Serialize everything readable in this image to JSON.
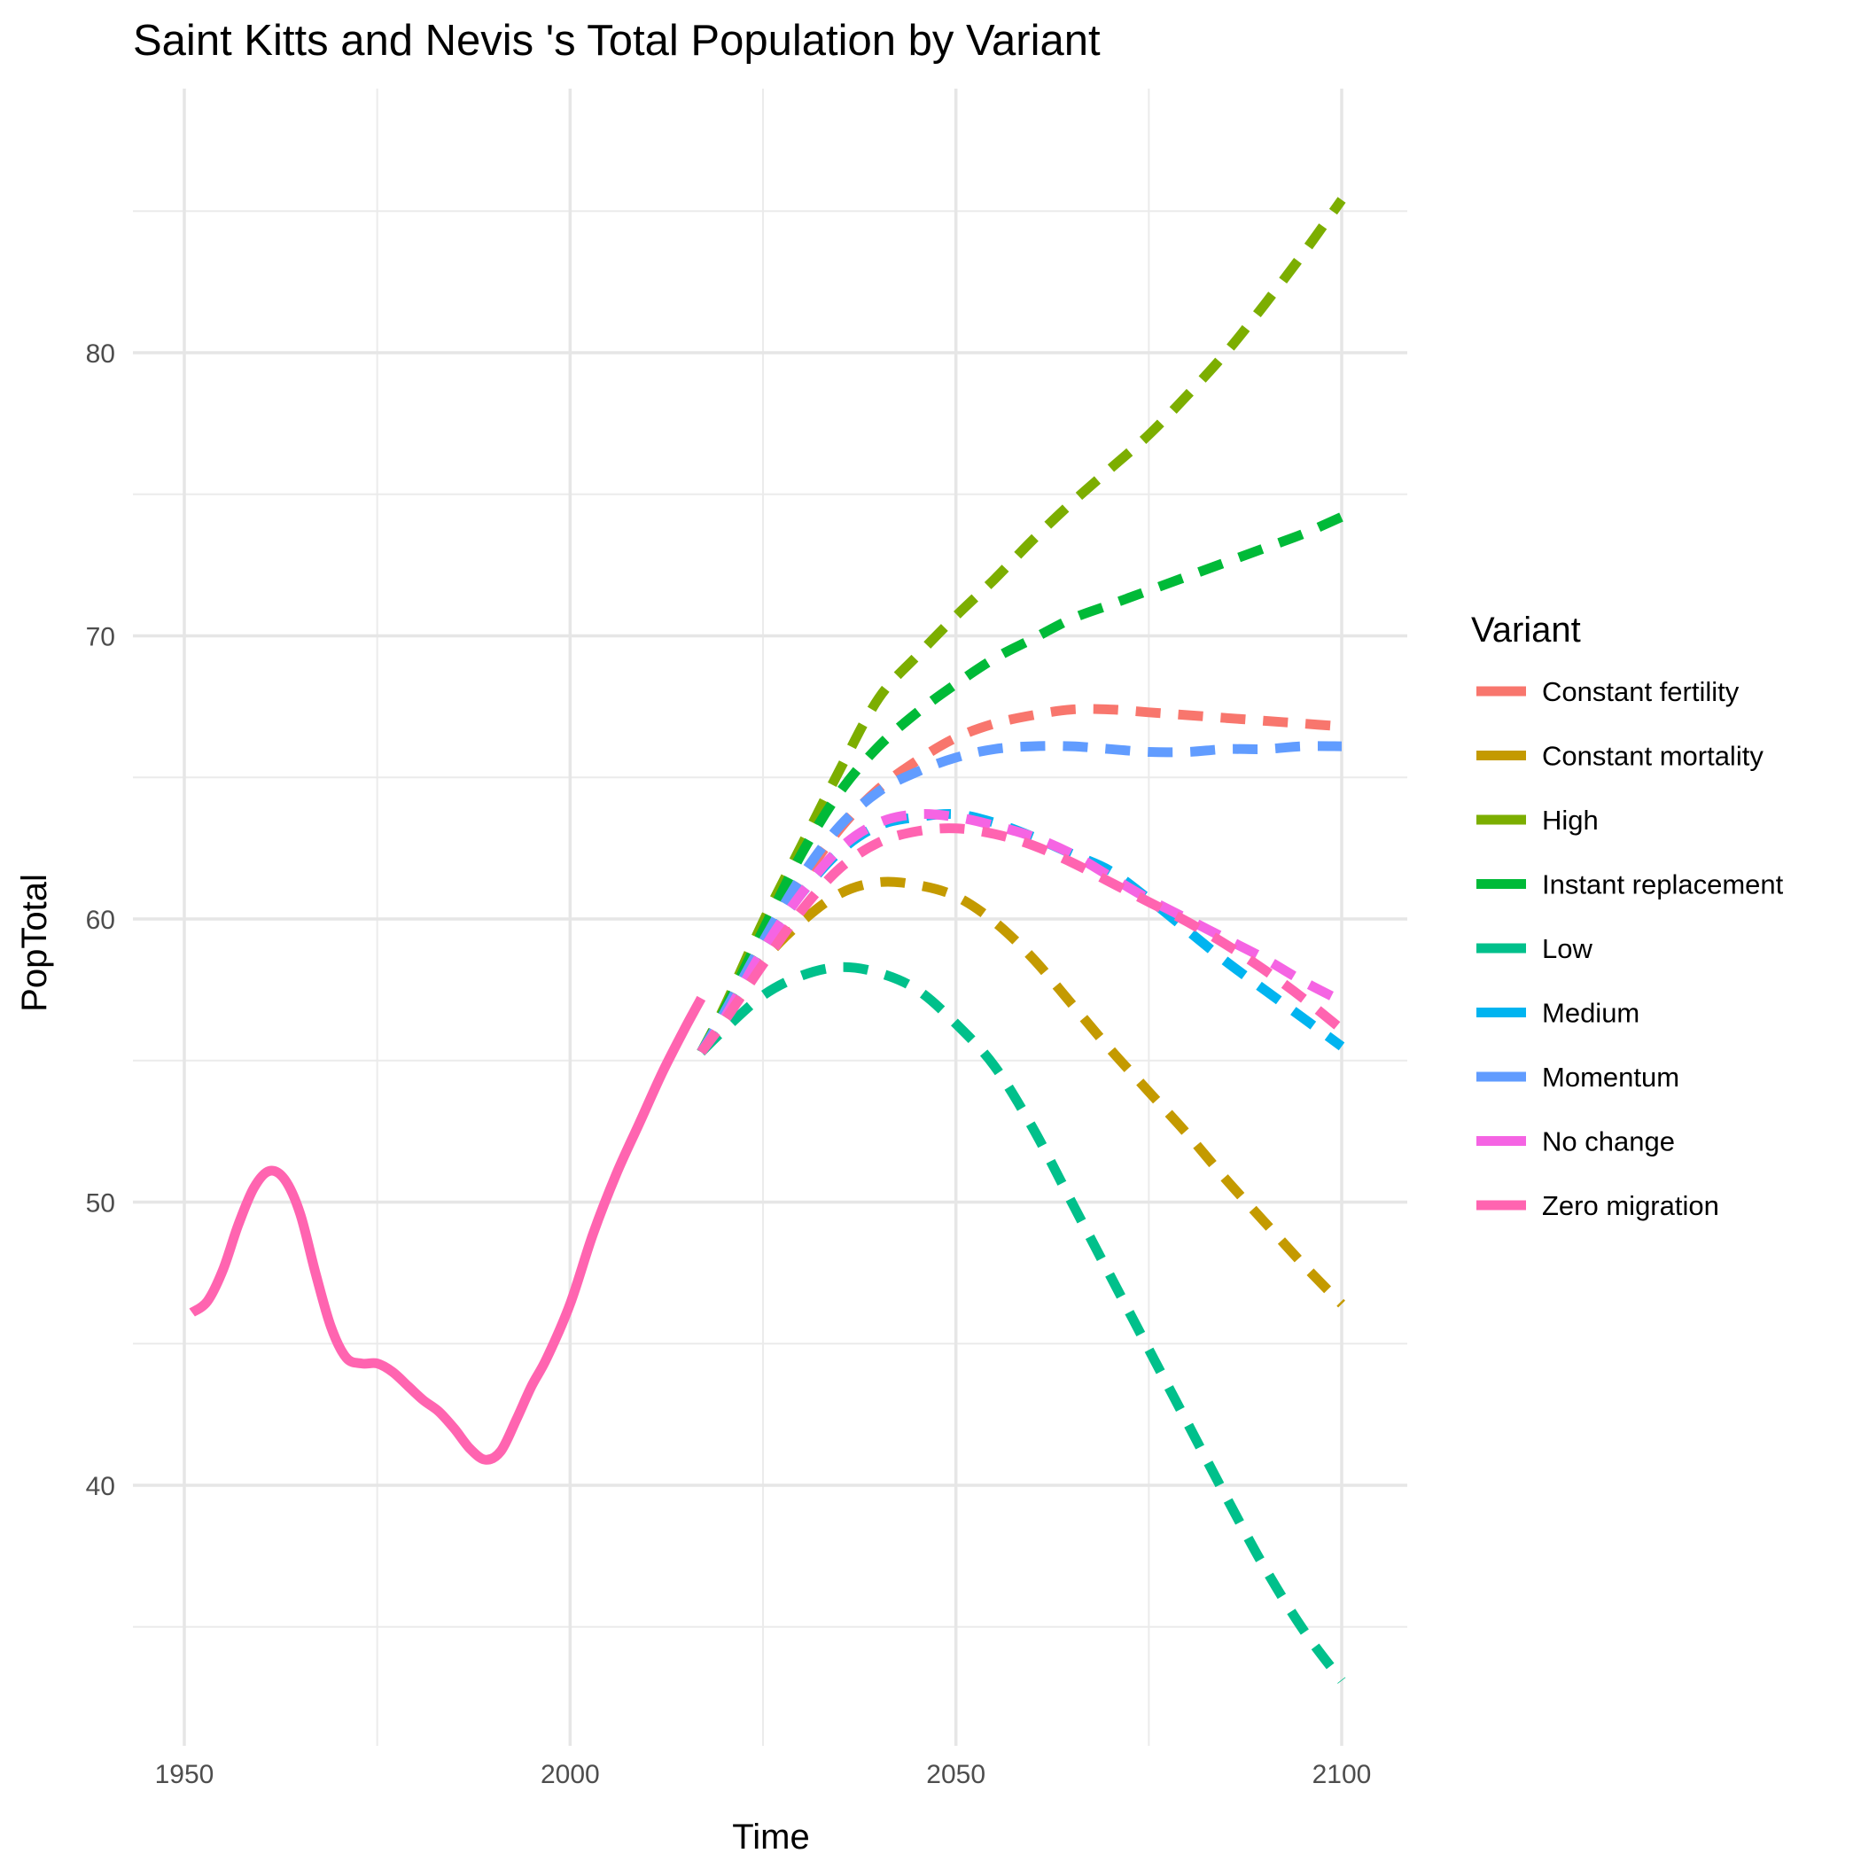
{
  "chart_data": {
    "type": "line",
    "title": "Saint Kitts and Nevis 's Total Population by Variant",
    "xlabel": "Time",
    "ylabel": "PopTotal",
    "xlim": [
      1950,
      2100
    ],
    "ylim": [
      33,
      87
    ],
    "x_ticks": [
      "1950",
      "2000",
      "2050",
      "2100"
    ],
    "y_ticks": [
      "40",
      "50",
      "60",
      "70",
      "80"
    ],
    "grid": true,
    "legend_title": "Variant",
    "legend_position": "right",
    "historical": {
      "name": "Zero migration",
      "x": [
        1951,
        1953,
        1955,
        1957,
        1959,
        1961,
        1963,
        1965,
        1967,
        1969,
        1971,
        1973,
        1975,
        1977,
        1979,
        1981,
        1983,
        1985,
        1987,
        1989,
        1991,
        1993,
        1995,
        1997,
        2000,
        2003,
        2006,
        2009,
        2012,
        2015,
        2017
      ],
      "values": [
        46.1,
        46.5,
        47.6,
        49.2,
        50.5,
        51.1,
        50.8,
        49.6,
        47.5,
        45.6,
        44.5,
        44.3,
        44.3,
        44.0,
        43.5,
        43.0,
        42.6,
        42.0,
        41.3,
        40.9,
        41.2,
        42.3,
        43.5,
        44.5,
        46.4,
        48.9,
        51.0,
        52.8,
        54.6,
        56.2,
        57.2
      ]
    },
    "series": [
      {
        "name": "Constant fertility",
        "color": "#F8766D",
        "x": [
          2017,
          2020,
          2025,
          2030,
          2035,
          2040,
          2045,
          2050,
          2055,
          2060,
          2065,
          2070,
          2075,
          2080,
          2085,
          2090,
          2095,
          2100
        ],
        "values": [
          55.3,
          56.7,
          59.0,
          61.3,
          63.2,
          64.6,
          65.6,
          66.4,
          66.9,
          67.2,
          67.4,
          67.4,
          67.3,
          67.2,
          67.1,
          67.0,
          66.9,
          66.8
        ]
      },
      {
        "name": "Constant mortality",
        "color": "#C49A00",
        "x": [
          2017,
          2020,
          2025,
          2030,
          2035,
          2040,
          2045,
          2050,
          2055,
          2060,
          2065,
          2070,
          2075,
          2080,
          2085,
          2090,
          2095,
          2100
        ],
        "values": [
          55.3,
          56.4,
          58.5,
          59.9,
          60.9,
          61.3,
          61.2,
          60.8,
          59.9,
          58.6,
          57.0,
          55.4,
          53.9,
          52.4,
          50.8,
          49.3,
          47.8,
          46.4
        ]
      },
      {
        "name": "High",
        "color": "#7CAE00",
        "x": [
          2017,
          2020,
          2025,
          2030,
          2035,
          2040,
          2045,
          2050,
          2055,
          2060,
          2065,
          2070,
          2075,
          2080,
          2085,
          2090,
          2095,
          2100
        ],
        "values": [
          55.3,
          56.9,
          59.9,
          62.6,
          65.3,
          67.8,
          69.3,
          70.7,
          72.0,
          73.4,
          74.7,
          75.9,
          77.1,
          78.5,
          80.0,
          81.7,
          83.5,
          85.4
        ]
      },
      {
        "name": "Instant replacement",
        "color": "#00BA38",
        "x": [
          2017,
          2020,
          2025,
          2030,
          2035,
          2040,
          2045,
          2050,
          2055,
          2060,
          2065,
          2070,
          2075,
          2080,
          2085,
          2090,
          2095,
          2100
        ],
        "values": [
          55.3,
          56.8,
          59.6,
          62.3,
          64.5,
          66.1,
          67.3,
          68.3,
          69.2,
          69.9,
          70.6,
          71.1,
          71.6,
          72.1,
          72.6,
          73.1,
          73.6,
          74.2
        ]
      },
      {
        "name": "Low",
        "color": "#00C08B",
        "x": [
          2017,
          2020,
          2025,
          2030,
          2035,
          2040,
          2045,
          2050,
          2055,
          2060,
          2065,
          2070,
          2075,
          2080,
          2085,
          2090,
          2095,
          2100
        ],
        "values": [
          55.3,
          56.1,
          57.3,
          58.0,
          58.3,
          58.1,
          57.5,
          56.3,
          54.8,
          52.6,
          50.0,
          47.4,
          44.8,
          42.2,
          39.6,
          37.1,
          34.9,
          33.1
        ]
      },
      {
        "name": "Medium",
        "color": "#00B4F0",
        "x": [
          2017,
          2020,
          2025,
          2030,
          2035,
          2040,
          2045,
          2050,
          2055,
          2060,
          2065,
          2070,
          2075,
          2080,
          2085,
          2090,
          2095,
          2100
        ],
        "values": [
          55.3,
          56.6,
          59.0,
          60.9,
          62.4,
          63.3,
          63.6,
          63.7,
          63.4,
          62.9,
          62.3,
          61.7,
          60.7,
          59.6,
          58.5,
          57.5,
          56.5,
          55.5
        ]
      },
      {
        "name": "Momentum",
        "color": "#619CFF",
        "x": [
          2017,
          2020,
          2025,
          2030,
          2035,
          2040,
          2045,
          2050,
          2055,
          2060,
          2065,
          2070,
          2075,
          2080,
          2085,
          2090,
          2095,
          2100
        ],
        "values": [
          55.3,
          56.7,
          59.2,
          61.5,
          63.3,
          64.5,
          65.2,
          65.7,
          66.0,
          66.1,
          66.1,
          66.0,
          65.9,
          65.9,
          66.0,
          66.0,
          66.1,
          66.1
        ]
      },
      {
        "name": "No change",
        "color": "#F564E3",
        "x": [
          2017,
          2020,
          2025,
          2030,
          2035,
          2040,
          2045,
          2050,
          2055,
          2060,
          2065,
          2070,
          2075,
          2080,
          2085,
          2090,
          2095,
          2100
        ],
        "values": [
          55.3,
          56.5,
          58.9,
          60.9,
          62.5,
          63.4,
          63.7,
          63.6,
          63.3,
          62.9,
          62.3,
          61.5,
          60.7,
          60.0,
          59.3,
          58.6,
          57.8,
          57.1
        ]
      },
      {
        "name": "Zero migration",
        "color": "#FF64B0",
        "x": [
          2017,
          2020,
          2025,
          2030,
          2035,
          2040,
          2045,
          2050,
          2055,
          2060,
          2065,
          2070,
          2075,
          2080,
          2085,
          2090,
          2095,
          2100
        ],
        "values": [
          55.3,
          56.4,
          58.4,
          60.3,
          61.8,
          62.7,
          63.1,
          63.2,
          63.0,
          62.6,
          62.0,
          61.3,
          60.6,
          59.9,
          59.1,
          58.2,
          57.2,
          56.1
        ]
      }
    ]
  }
}
